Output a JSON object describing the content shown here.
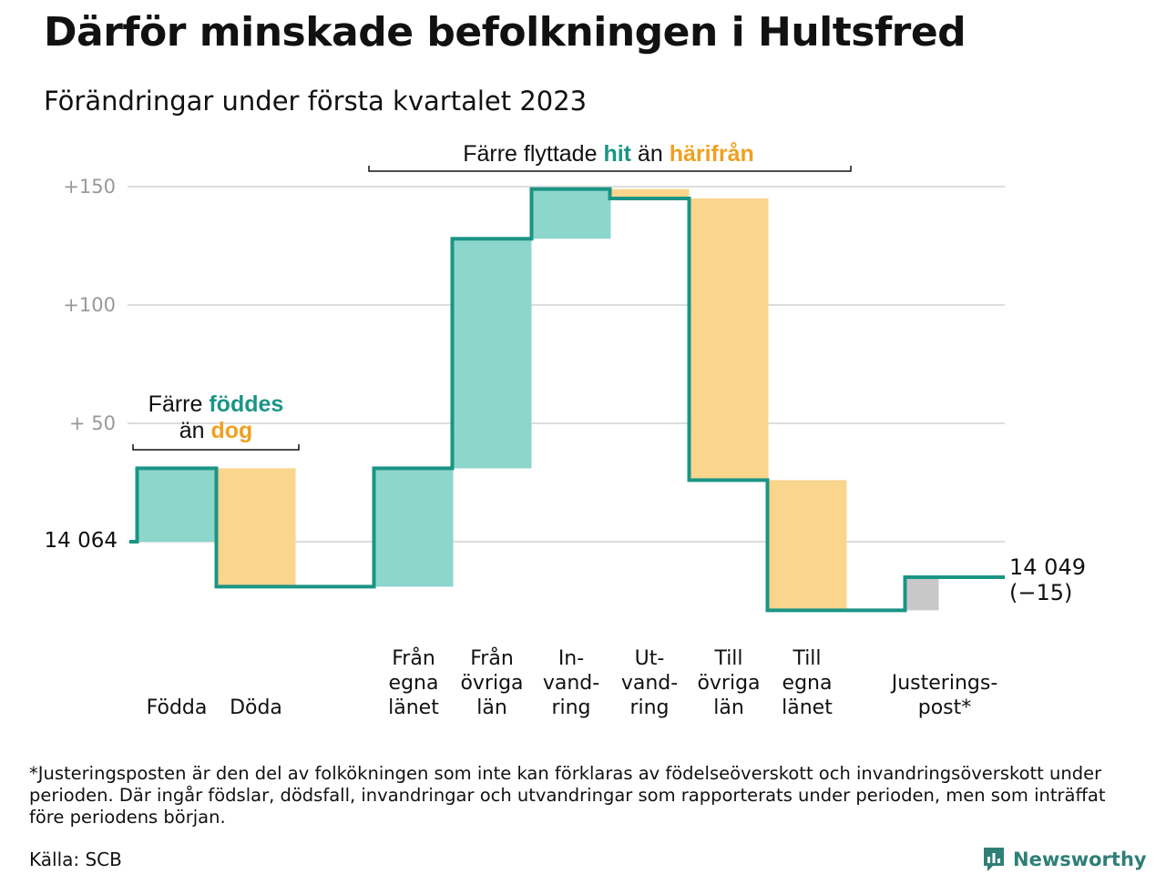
{
  "header": {
    "title": "Därför minskade befolkningen i Hultsfred",
    "subtitle": "Förändringar under första kvartalet 2023"
  },
  "colors": {
    "increase": "#8dd6cc",
    "decrease": "#fad58d",
    "adjustment": "#c8c8c8",
    "line": "#1a9585",
    "teal_text": "#1a9585",
    "orange_text": "#f0a020",
    "grid": "#dddddd",
    "tick_text": "#999999"
  },
  "chart_data": {
    "type": "waterfall",
    "start_value": 14064,
    "start_label": "14 064",
    "end_value": 14049,
    "end_label": "14 049",
    "end_change_label": "(−15)",
    "y_ticks": [
      {
        "value": 50,
        "label": "+ 50"
      },
      {
        "value": 100,
        "label": "+100"
      },
      {
        "value": 150,
        "label": "+150"
      }
    ],
    "ylim": [
      -30,
      160
    ],
    "steps": [
      {
        "label_lines": [
          "Födda"
        ],
        "value": 31,
        "kind": "increase"
      },
      {
        "label_lines": [
          "Döda"
        ],
        "value": -50,
        "kind": "decrease"
      },
      {
        "label_lines": [
          "Från",
          "egna",
          "länet"
        ],
        "value": 50,
        "kind": "increase"
      },
      {
        "label_lines": [
          "Från",
          "övriga",
          "län"
        ],
        "value": 97,
        "kind": "increase"
      },
      {
        "label_lines": [
          "In-",
          "vand-",
          "ring"
        ],
        "value": 21,
        "kind": "increase"
      },
      {
        "label_lines": [
          "Ut-",
          "vand-",
          "ring"
        ],
        "value": -4,
        "kind": "decrease"
      },
      {
        "label_lines": [
          "Till",
          "övriga",
          "län"
        ],
        "value": -119,
        "kind": "decrease"
      },
      {
        "label_lines": [
          "Till",
          "egna",
          "länet"
        ],
        "value": -55,
        "kind": "decrease"
      },
      {
        "label_lines": [
          "Justerings-",
          "post*"
        ],
        "value": 14,
        "kind": "adjustment"
      }
    ],
    "annotations": [
      {
        "id": "births-vs-deaths",
        "line1": [
          {
            "text": "Färre ",
            "style": "plain"
          },
          {
            "text": "föddes",
            "style": "teal"
          }
        ],
        "line2": [
          {
            "text": "än ",
            "style": "plain"
          },
          {
            "text": "dog",
            "style": "orange"
          }
        ]
      },
      {
        "id": "moves",
        "line1": [
          {
            "text": "Färre flyttade ",
            "style": "plain"
          },
          {
            "text": "hit",
            "style": "teal"
          },
          {
            "text": " än ",
            "style": "plain"
          },
          {
            "text": "härifrån",
            "style": "orange"
          }
        ]
      }
    ]
  },
  "footer": {
    "footnote": "*Justeringsposten är den del av folkökningen som inte kan förklaras av födelseöverskott och invandringsöverskott under perioden. Där ingår födslar, dödsfall, invandringar och utvandringar som rapporterats under perioden, men som inträffat före periodens början.",
    "source": "Källa: SCB",
    "brand": "Newsworthy"
  }
}
